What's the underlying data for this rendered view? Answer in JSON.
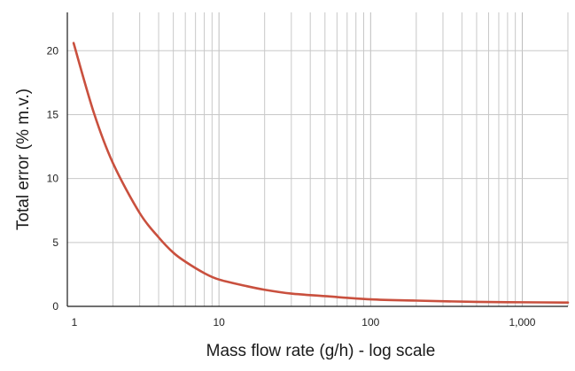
{
  "chart_data": {
    "type": "line",
    "xlabel": "Mass flow rate (g/h) - log scale",
    "ylabel": "Total error (% m.v.)",
    "x_scale": "log",
    "xlim": [
      1,
      2000
    ],
    "ylim": [
      0,
      23
    ],
    "grid": "vertical minor log gridlines and horizontal gridlines at y ticks",
    "x_ticks": [
      {
        "value": 1,
        "label": "1"
      },
      {
        "value": 10,
        "label": "10"
      },
      {
        "value": 100,
        "label": "100"
      },
      {
        "value": 1000,
        "label": "1,000"
      }
    ],
    "y_ticks": [
      {
        "value": 0,
        "label": "0"
      },
      {
        "value": 5,
        "label": "5"
      },
      {
        "value": 10,
        "label": "10"
      },
      {
        "value": 15,
        "label": "15"
      },
      {
        "value": 20,
        "label": "20"
      }
    ],
    "series": [
      {
        "color": "#c9503e",
        "x": [
          1.1,
          1.5,
          2,
          3,
          4,
          5,
          6,
          8,
          10,
          15,
          20,
          30,
          50,
          100,
          200,
          500,
          1000,
          2000
        ],
        "values": [
          20.6,
          15.1,
          11.2,
          7.3,
          5.4,
          4.2,
          3.5,
          2.6,
          2.1,
          1.6,
          1.3,
          1.0,
          0.8,
          0.55,
          0.45,
          0.35,
          0.32,
          0.3
        ]
      }
    ]
  }
}
